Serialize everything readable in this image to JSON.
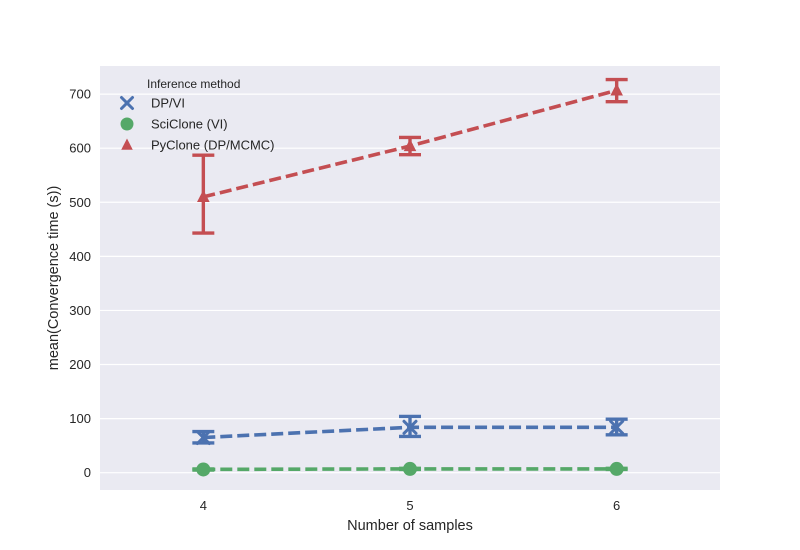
{
  "chart_data": {
    "type": "line",
    "xlabel": "Number of samples",
    "ylabel": "mean(Convergence time (s))",
    "x": [
      4,
      5,
      6
    ],
    "xticks": [
      "4",
      "5",
      "6"
    ],
    "xlim": [
      3.5,
      6.5
    ],
    "ylim": [
      -32,
      752
    ],
    "yticks": [
      "0",
      "100",
      "200",
      "300",
      "400",
      "500",
      "600",
      "700"
    ],
    "grid": true,
    "background": "#EAEAF2",
    "legend": {
      "title": "Inference method",
      "placement": "top-left"
    },
    "series": [
      {
        "name": "DP/VI",
        "marker": "x",
        "color": "#4C72B0",
        "values": [
          65,
          84,
          84
        ],
        "err_low": [
          55,
          67,
          70
        ],
        "err_high": [
          76,
          104,
          99
        ]
      },
      {
        "name": "SciClone (VI)",
        "marker": "circle",
        "color": "#55A868",
        "values": [
          6,
          7,
          7
        ],
        "err_low": [
          5,
          6,
          6
        ],
        "err_high": [
          7,
          8,
          8
        ]
      },
      {
        "name": "PyClone (DP/MCMC)",
        "marker": "triangle",
        "color": "#C44E52",
        "values": [
          510,
          604,
          707
        ],
        "err_low": [
          443,
          588,
          686
        ],
        "err_high": [
          587,
          620,
          727
        ]
      }
    ]
  }
}
